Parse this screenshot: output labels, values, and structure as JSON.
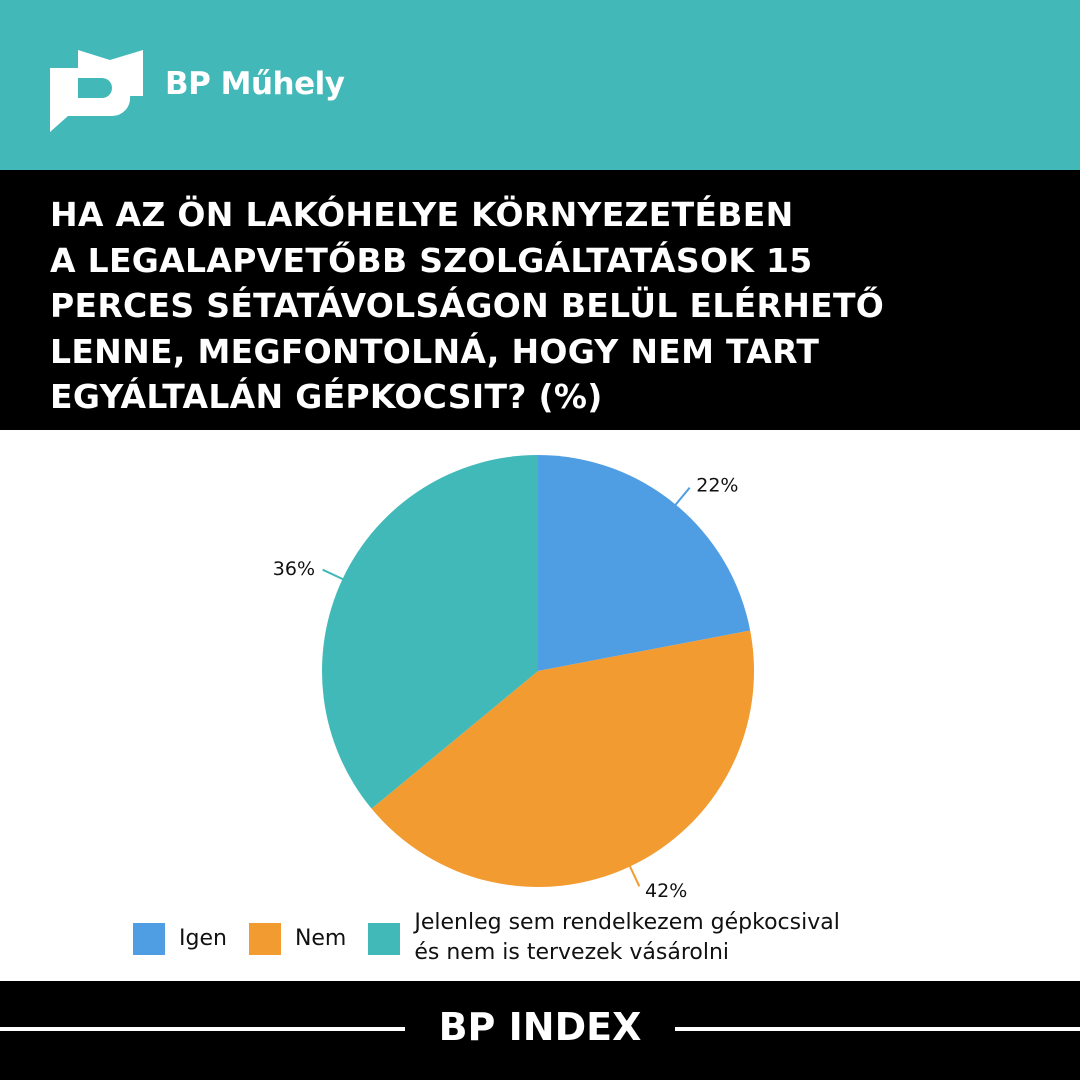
{
  "header": {
    "brand": "BP Műhely",
    "logo": "BP Műhely"
  },
  "title_lines": [
    "HA AZ ÖN LAKÓHELYE KÖRNYEZETÉBEN",
    "A LEGALAPVETŐBB SZOLGÁLTATÁSOK 15",
    "PERCES SÉTATÁVOLSÁGON BELÜL ELÉRHETŐ",
    "LENNE, MEGFONTOLNÁ, HOGY NEM TART",
    "EGYÁLTALÁN GÉPKOCSIT? (%)"
  ],
  "chart_data": {
    "type": "pie",
    "title": "HA AZ ÖN LAKÓHELYE KÖRNYEZETÉBEN A LEGALAPVETŐBB SZOLGÁLTATÁSOK 15 PERCES SÉTATÁVOLSÁGON BELÜL ELÉRHETŐ LENNE, MEGFONTOLNÁ, HOGY NEM TART EGYÁLTALÁN GÉPKOCSIT? (%)",
    "categories": [
      "Igen",
      "Nem",
      "Jelenleg sem rendelkezem gépkocsival és nem is tervezek vásárolni"
    ],
    "values": [
      22,
      42,
      36
    ],
    "labels": [
      "22%",
      "42%",
      "36%"
    ],
    "colors": [
      "#4f9de3",
      "#f29b30",
      "#42b9b9"
    ],
    "legend": "bottom"
  },
  "legend": [
    {
      "label": "Igen"
    },
    {
      "label": "Nem"
    },
    {
      "line1": "Jelenleg sem rendelkezem gépkocsival",
      "line2": "és nem is tervezek vásárolni"
    }
  ],
  "footer": {
    "label": "BP INDEX"
  }
}
